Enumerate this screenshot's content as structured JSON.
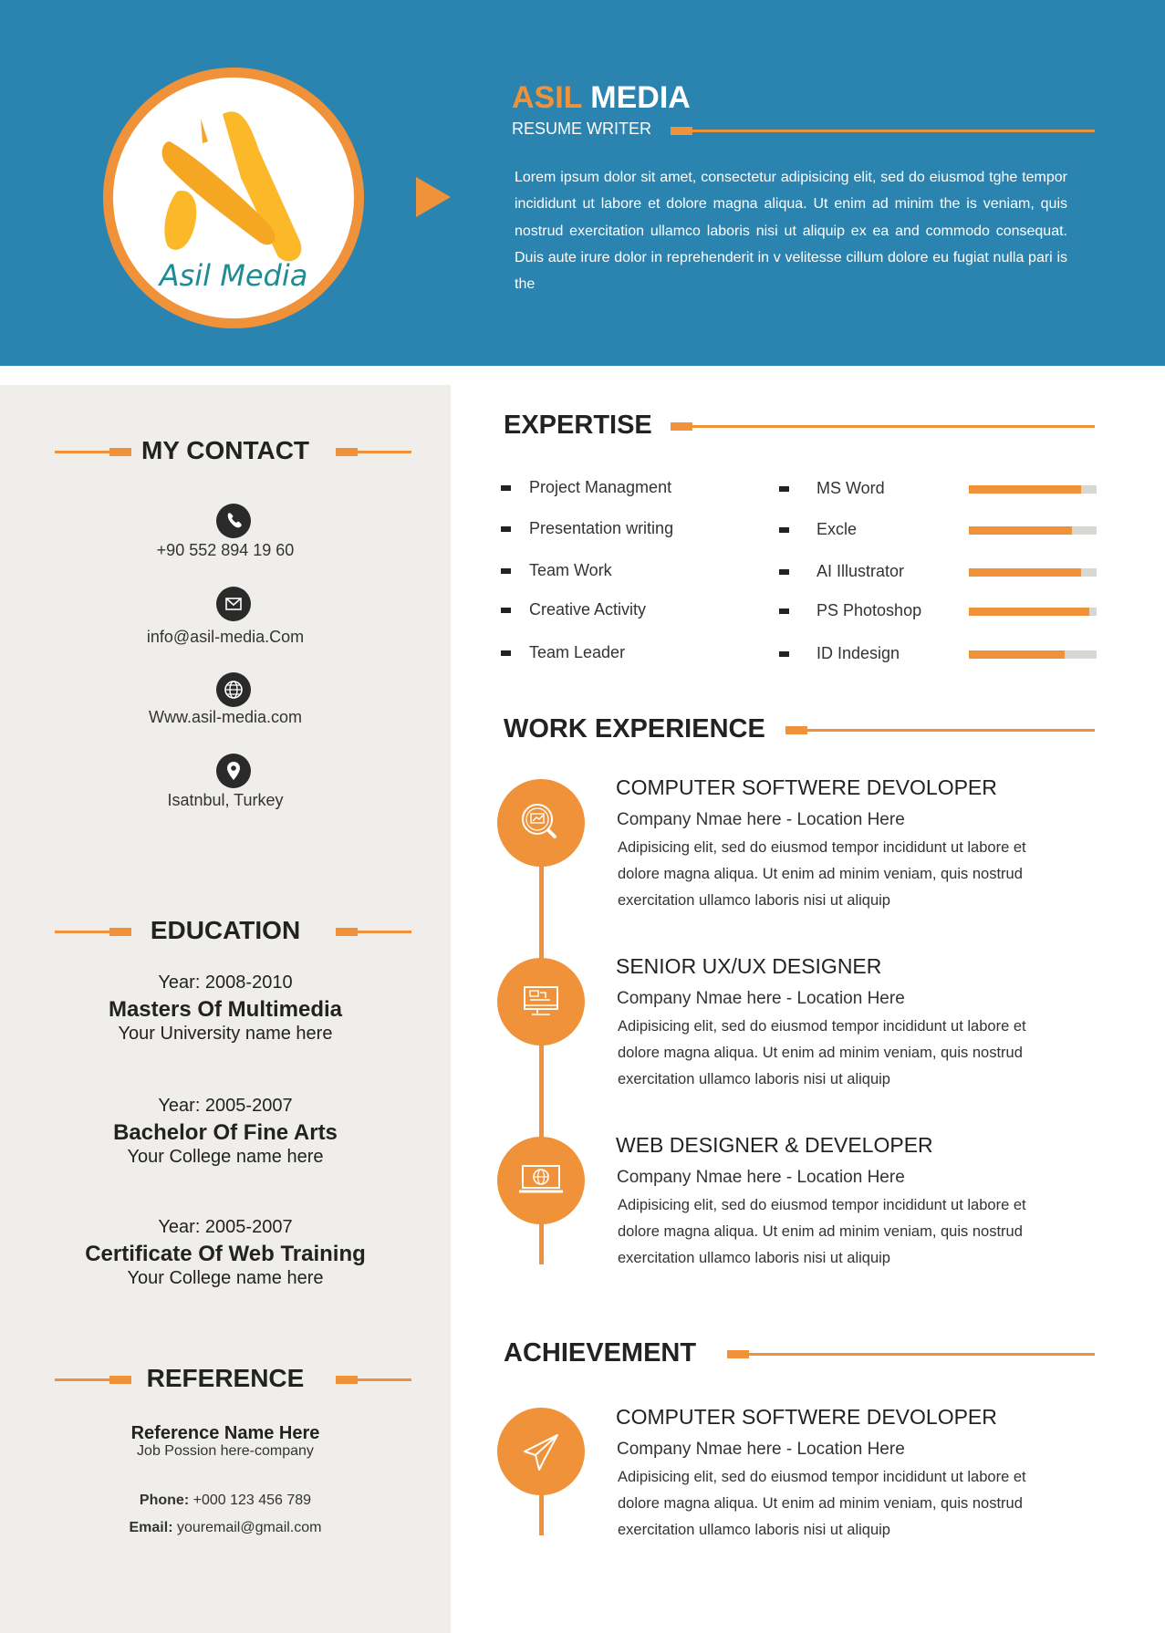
{
  "colors": {
    "header_bg": "#2b83b0",
    "accent": "#f0923a",
    "panel_bg": "#efeeeb",
    "text": "#2a2a2a"
  },
  "header": {
    "logo_text": "Asil Media",
    "name_first": "ASIL",
    "name_last": "MEDIA",
    "role": "RESUME WRITER",
    "summary": "Lorem ipsum dolor sit amet, consectetur adipisicing elit, sed do eiusmod tghe tempor incididunt ut labore et dolore magna aliqua. Ut enim ad minim the is veniam, quis nostrud exercitation ullamco laboris nisi ut aliquip ex ea and commodo consequat. Duis aute irure dolor in reprehenderit in v velitesse cillum dolore eu fugiat nulla pari is the"
  },
  "contact": {
    "heading": "MY CONTACT",
    "items": [
      {
        "icon": "phone-icon",
        "text": "+90 552 894 19 60"
      },
      {
        "icon": "email-icon",
        "text": "info@asil-media.Com"
      },
      {
        "icon": "globe-icon",
        "text": "Www.asil-media.com"
      },
      {
        "icon": "location-pin-icon",
        "text": "Isatnbul, Turkey"
      }
    ]
  },
  "education": {
    "heading": "EDUCATION",
    "items": [
      {
        "year": "Year: 2008-2010",
        "degree": "Masters Of Multimedia",
        "school": "Your University name here"
      },
      {
        "year": "Year: 2005-2007",
        "degree": "Bachelor Of Fine Arts",
        "school": "Your College name here"
      },
      {
        "year": "Year: 2005-2007",
        "degree": "Certificate Of Web Training",
        "school": "Your College name here"
      }
    ]
  },
  "reference": {
    "heading": "REFERENCE",
    "name": "Reference Name Here",
    "position": "Job Possion here-company",
    "phone_label": "Phone:",
    "phone": "+000 123 456 789",
    "email_label": "Email:",
    "email": "youremail@gmail.com"
  },
  "expertise": {
    "heading": "EXPERTISE",
    "skills": [
      "Project Managment",
      "Presentation writing",
      "Team Work",
      "Creative Activity",
      "Team Leader"
    ],
    "software": [
      {
        "name": "MS Word",
        "level": 0.88
      },
      {
        "name": "Excle",
        "level": 0.81
      },
      {
        "name": "AI Illustrator",
        "level": 0.88
      },
      {
        "name": "PS Photoshop",
        "level": 0.94
      },
      {
        "name": "ID Indesign",
        "level": 0.75
      }
    ]
  },
  "work": {
    "heading": "WORK EXPERIENCE",
    "items": [
      {
        "icon": "search-analytics-icon",
        "title": "COMPUTER SOFTWERE DEVOLOPER",
        "company": "Company Nmae here - Location Here",
        "desc": "Adipisicing elit, sed do eiusmod tempor incididunt ut labore et dolore magna aliqua. Ut enim ad minim veniam, quis nostrud exercitation ullamco laboris nisi ut aliquip"
      },
      {
        "icon": "monitor-design-icon",
        "title": "SENIOR UX/UX DESIGNER",
        "company": "Company Nmae here - Location Here",
        "desc": "Adipisicing elit, sed do eiusmod tempor incididunt ut labore et dolore magna aliqua. Ut enim ad minim veniam, quis nostrud exercitation ullamco laboris nisi ut aliquip"
      },
      {
        "icon": "web-globe-laptop-icon",
        "title": "WEB DESIGNER & DEVELOPER",
        "company": "Company Nmae here - Location Here",
        "desc": "Adipisicing elit, sed do eiusmod tempor incididunt ut labore et dolore magna aliqua. Ut enim ad minim veniam, quis nostrud exercitation ullamco laboris nisi ut aliquip"
      }
    ]
  },
  "achievement": {
    "heading": "ACHIEVEMENT",
    "items": [
      {
        "icon": "paper-plane-icon",
        "title": "COMPUTER SOFTWERE DEVOLOPER",
        "company": "Company Nmae here - Location Here",
        "desc": "Adipisicing elit, sed do eiusmod tempor incididunt ut labore et dolore magna aliqua. Ut enim ad minim veniam, quis nostrud exercitation ullamco laboris nisi ut aliquip"
      }
    ]
  }
}
